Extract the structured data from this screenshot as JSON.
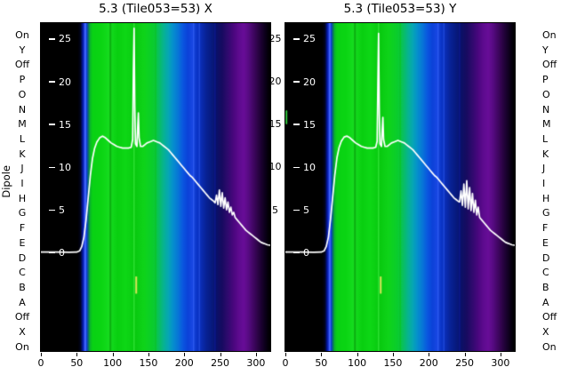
{
  "axis": {
    "dipole_axis_label": "Dipole",
    "dipole_labels": [
      "On",
      "Y",
      "Off",
      "P",
      "O",
      "N",
      "M",
      "L",
      "K",
      "J",
      "I",
      "H",
      "G",
      "F",
      "E",
      "D",
      "C",
      "B",
      "A",
      "Off",
      "X",
      "On"
    ],
    "overlay_ticks_between": [
      25,
      20,
      15,
      10,
      5
    ]
  },
  "chart_data": [
    {
      "type": "heatmap",
      "title": "5.3 (Tile053=53) X",
      "ylabel": "Dipole",
      "xlim": [
        0,
        320
      ],
      "x_ticks": [
        0,
        50,
        100,
        150,
        200,
        250,
        300
      ],
      "overlay": {
        "ylim": [
          -11.5,
          26.8
        ],
        "yticks_inner": [
          25,
          20,
          15,
          10,
          5,
          0
        ],
        "line_color": "#ffffff",
        "line": [
          [
            0,
            0.05
          ],
          [
            20,
            0.05
          ],
          [
            40,
            0.03
          ],
          [
            50,
            0.05
          ],
          [
            54,
            0.2
          ],
          [
            57,
            0.7
          ],
          [
            60,
            1.8
          ],
          [
            63,
            3.8
          ],
          [
            66,
            6.4
          ],
          [
            69,
            9.0
          ],
          [
            72,
            11.0
          ],
          [
            75,
            12.2
          ],
          [
            78,
            12.9
          ],
          [
            82,
            13.4
          ],
          [
            86,
            13.6
          ],
          [
            90,
            13.4
          ],
          [
            94,
            13.1
          ],
          [
            98,
            12.8
          ],
          [
            102,
            12.6
          ],
          [
            106,
            12.4
          ],
          [
            110,
            12.3
          ],
          [
            114,
            12.2
          ],
          [
            118,
            12.2
          ],
          [
            122,
            12.2
          ],
          [
            126,
            12.3
          ],
          [
            128,
            13.2
          ],
          [
            129,
            21.0
          ],
          [
            130,
            26.2
          ],
          [
            131,
            17.0
          ],
          [
            132,
            12.7
          ],
          [
            134,
            12.4
          ],
          [
            135,
            14.6
          ],
          [
            136,
            16.3
          ],
          [
            137,
            13.4
          ],
          [
            139,
            12.4
          ],
          [
            142,
            12.4
          ],
          [
            145,
            12.6
          ],
          [
            148,
            12.8
          ],
          [
            151,
            12.9
          ],
          [
            154,
            13.0
          ],
          [
            157,
            13.1
          ],
          [
            160,
            13.0
          ],
          [
            163,
            12.9
          ],
          [
            166,
            12.8
          ],
          [
            169,
            12.6
          ],
          [
            172,
            12.4
          ],
          [
            175,
            12.2
          ],
          [
            178,
            12.0
          ],
          [
            181,
            11.7
          ],
          [
            184,
            11.4
          ],
          [
            187,
            11.1
          ],
          [
            190,
            10.8
          ],
          [
            193,
            10.5
          ],
          [
            196,
            10.2
          ],
          [
            199,
            9.9
          ],
          [
            202,
            9.6
          ],
          [
            205,
            9.3
          ],
          [
            208,
            9.0
          ],
          [
            211,
            8.8
          ],
          [
            214,
            8.5
          ],
          [
            217,
            8.2
          ],
          [
            220,
            7.9
          ],
          [
            223,
            7.6
          ],
          [
            226,
            7.3
          ],
          [
            229,
            7.0
          ],
          [
            232,
            6.7
          ],
          [
            235,
            6.4
          ],
          [
            238,
            6.2
          ],
          [
            241,
            6.0
          ],
          [
            243,
            5.8
          ],
          [
            245,
            6.7
          ],
          [
            247,
            5.6
          ],
          [
            249,
            7.3
          ],
          [
            251,
            5.4
          ],
          [
            253,
            7.0
          ],
          [
            255,
            5.2
          ],
          [
            257,
            6.4
          ],
          [
            259,
            5.0
          ],
          [
            261,
            5.9
          ],
          [
            263,
            4.7
          ],
          [
            265,
            5.3
          ],
          [
            267,
            4.4
          ],
          [
            269,
            4.7
          ],
          [
            271,
            4.1
          ],
          [
            274,
            3.8
          ],
          [
            277,
            3.5
          ],
          [
            280,
            3.2
          ],
          [
            283,
            2.9
          ],
          [
            286,
            2.6
          ],
          [
            289,
            2.4
          ],
          [
            292,
            2.2
          ],
          [
            295,
            2.0
          ],
          [
            298,
            1.8
          ],
          [
            301,
            1.6
          ],
          [
            304,
            1.4
          ],
          [
            307,
            1.2
          ],
          [
            310,
            1.1
          ],
          [
            313,
            1.0
          ],
          [
            316,
            0.9
          ],
          [
            320,
            0.85
          ]
        ]
      },
      "background_stops": [
        [
          0.0,
          "#000000"
        ],
        [
          0.16,
          "#000000"
        ],
        [
          0.172,
          "#00031a"
        ],
        [
          0.183,
          "#0418a6"
        ],
        [
          0.192,
          "#2a52f5"
        ],
        [
          0.2,
          "#0a3fd0"
        ],
        [
          0.207,
          "#0b6f66"
        ],
        [
          0.215,
          "#0ab62a"
        ],
        [
          0.225,
          "#09d214"
        ],
        [
          0.265,
          "#0bd513"
        ],
        [
          0.3,
          "#16dd20"
        ],
        [
          0.335,
          "#09cf10"
        ],
        [
          0.37,
          "#0ed816"
        ],
        [
          0.41,
          "#08c90f"
        ],
        [
          0.45,
          "#0fd41a"
        ],
        [
          0.49,
          "#0acc2e"
        ],
        [
          0.515,
          "#08bf62"
        ],
        [
          0.535,
          "#07b391"
        ],
        [
          0.555,
          "#06a7b4"
        ],
        [
          0.575,
          "#0590cc"
        ],
        [
          0.6,
          "#0873d8"
        ],
        [
          0.62,
          "#0a55e0"
        ],
        [
          0.64,
          "#0b42d8"
        ],
        [
          0.66,
          "#1847e2"
        ],
        [
          0.68,
          "#0b35c8"
        ],
        [
          0.7,
          "#0a2cb2"
        ],
        [
          0.72,
          "#082295"
        ],
        [
          0.745,
          "#071a7e"
        ],
        [
          0.765,
          "#0a1168"
        ],
        [
          0.79,
          "#170b60"
        ],
        [
          0.815,
          "#300a6e"
        ],
        [
          0.84,
          "#49077e"
        ],
        [
          0.862,
          "#5d0b8e"
        ],
        [
          0.885,
          "#680d98"
        ],
        [
          0.905,
          "#570b82"
        ],
        [
          0.928,
          "#3f0660"
        ],
        [
          0.95,
          "#270340"
        ],
        [
          0.972,
          "#110122"
        ],
        [
          0.99,
          "#04000a"
        ],
        [
          1.0,
          "#000000"
        ]
      ],
      "stripes": [
        {
          "x": 62,
          "w": 1.5,
          "color": "#4d6bff",
          "alpha": 0.9
        },
        {
          "x": 97,
          "w": 2,
          "color": "#0aa40c",
          "alpha": 0.8
        },
        {
          "x": 130,
          "w": 1.2,
          "color": "#3ae93f",
          "alpha": 0.9
        },
        {
          "x": 160,
          "w": 1,
          "color": "#0abf12",
          "alpha": 0.8
        },
        {
          "x": 213,
          "w": 1.5,
          "color": "#2e5bf0",
          "alpha": 0.9
        },
        {
          "x": 221,
          "w": 1,
          "color": "#2e5bf0",
          "alpha": 0.8
        },
        {
          "x": 243,
          "w": 1,
          "color": "#0d1a9e",
          "alpha": 0.9
        }
      ],
      "marks": [
        {
          "x": 133,
          "y1": -2.8,
          "y2": -4.8,
          "color": "#d9e65a",
          "w": 2
        }
      ]
    },
    {
      "type": "heatmap",
      "title": "5.3 (Tile053=53) Y",
      "ylabel": "Dipole",
      "xlim": [
        0,
        320
      ],
      "x_ticks": [
        0,
        50,
        100,
        150,
        200,
        250,
        300
      ],
      "overlay": {
        "ylim": [
          -11.5,
          26.8
        ],
        "yticks_inner": [
          25,
          20,
          15,
          10,
          5,
          0
        ],
        "line_color": "#ffffff",
        "line": [
          [
            0,
            0.05
          ],
          [
            20,
            0.05
          ],
          [
            40,
            0.03
          ],
          [
            50,
            0.05
          ],
          [
            54,
            0.2
          ],
          [
            57,
            0.7
          ],
          [
            60,
            1.8
          ],
          [
            63,
            3.9
          ],
          [
            66,
            6.5
          ],
          [
            69,
            9.1
          ],
          [
            72,
            11.1
          ],
          [
            75,
            12.3
          ],
          [
            78,
            13.0
          ],
          [
            82,
            13.5
          ],
          [
            86,
            13.6
          ],
          [
            90,
            13.4
          ],
          [
            94,
            13.1
          ],
          [
            98,
            12.8
          ],
          [
            102,
            12.6
          ],
          [
            106,
            12.4
          ],
          [
            110,
            12.3
          ],
          [
            114,
            12.2
          ],
          [
            118,
            12.2
          ],
          [
            122,
            12.2
          ],
          [
            126,
            12.3
          ],
          [
            128,
            13.0
          ],
          [
            129,
            19.5
          ],
          [
            130,
            25.6
          ],
          [
            131,
            16.2
          ],
          [
            132,
            12.7
          ],
          [
            134,
            12.4
          ],
          [
            135,
            14.2
          ],
          [
            136,
            15.8
          ],
          [
            137,
            13.2
          ],
          [
            139,
            12.4
          ],
          [
            142,
            12.4
          ],
          [
            145,
            12.6
          ],
          [
            148,
            12.8
          ],
          [
            151,
            12.9
          ],
          [
            154,
            13.0
          ],
          [
            157,
            13.1
          ],
          [
            160,
            13.0
          ],
          [
            163,
            12.9
          ],
          [
            166,
            12.8
          ],
          [
            169,
            12.6
          ],
          [
            172,
            12.4
          ],
          [
            175,
            12.2
          ],
          [
            178,
            12.0
          ],
          [
            181,
            11.7
          ],
          [
            184,
            11.4
          ],
          [
            187,
            11.1
          ],
          [
            190,
            10.8
          ],
          [
            193,
            10.5
          ],
          [
            196,
            10.2
          ],
          [
            199,
            9.9
          ],
          [
            202,
            9.6
          ],
          [
            205,
            9.3
          ],
          [
            208,
            9.0
          ],
          [
            211,
            8.8
          ],
          [
            214,
            8.5
          ],
          [
            217,
            8.2
          ],
          [
            220,
            7.9
          ],
          [
            223,
            7.6
          ],
          [
            226,
            7.3
          ],
          [
            229,
            7.0
          ],
          [
            232,
            6.7
          ],
          [
            235,
            6.4
          ],
          [
            238,
            6.2
          ],
          [
            241,
            6.0
          ],
          [
            243,
            5.9
          ],
          [
            245,
            7.2
          ],
          [
            247,
            5.5
          ],
          [
            249,
            8.0
          ],
          [
            251,
            5.3
          ],
          [
            253,
            8.4
          ],
          [
            255,
            5.1
          ],
          [
            257,
            7.6
          ],
          [
            259,
            4.9
          ],
          [
            261,
            6.9
          ],
          [
            263,
            4.7
          ],
          [
            265,
            6.1
          ],
          [
            267,
            4.4
          ],
          [
            269,
            5.3
          ],
          [
            271,
            4.1
          ],
          [
            274,
            3.8
          ],
          [
            277,
            3.5
          ],
          [
            280,
            3.2
          ],
          [
            283,
            2.9
          ],
          [
            286,
            2.6
          ],
          [
            289,
            2.4
          ],
          [
            292,
            2.2
          ],
          [
            295,
            2.0
          ],
          [
            298,
            1.8
          ],
          [
            301,
            1.6
          ],
          [
            304,
            1.4
          ],
          [
            307,
            1.2
          ],
          [
            310,
            1.1
          ],
          [
            313,
            1.0
          ],
          [
            316,
            0.9
          ],
          [
            320,
            0.85
          ]
        ]
      },
      "background_stops": [
        [
          0.0,
          "#000000"
        ],
        [
          0.16,
          "#000000"
        ],
        [
          0.172,
          "#00031a"
        ],
        [
          0.183,
          "#0418a6"
        ],
        [
          0.192,
          "#2a52f5"
        ],
        [
          0.2,
          "#0a3fd0"
        ],
        [
          0.207,
          "#0b6f66"
        ],
        [
          0.215,
          "#0ab62a"
        ],
        [
          0.225,
          "#09d214"
        ],
        [
          0.265,
          "#0bd513"
        ],
        [
          0.3,
          "#16dd20"
        ],
        [
          0.335,
          "#09cf10"
        ],
        [
          0.37,
          "#0ed816"
        ],
        [
          0.41,
          "#08c90f"
        ],
        [
          0.45,
          "#0fd41a"
        ],
        [
          0.49,
          "#0acc2e"
        ],
        [
          0.515,
          "#08bf62"
        ],
        [
          0.535,
          "#07b391"
        ],
        [
          0.555,
          "#06a7b4"
        ],
        [
          0.575,
          "#0590cc"
        ],
        [
          0.6,
          "#0873d8"
        ],
        [
          0.62,
          "#0a55e0"
        ],
        [
          0.64,
          "#0b42d8"
        ],
        [
          0.66,
          "#1847e2"
        ],
        [
          0.68,
          "#0b35c8"
        ],
        [
          0.7,
          "#0a2cb2"
        ],
        [
          0.72,
          "#082295"
        ],
        [
          0.745,
          "#071a7e"
        ],
        [
          0.765,
          "#0a1168"
        ],
        [
          0.79,
          "#170b60"
        ],
        [
          0.815,
          "#300a6e"
        ],
        [
          0.84,
          "#49077e"
        ],
        [
          0.862,
          "#5d0b8e"
        ],
        [
          0.885,
          "#680d98"
        ],
        [
          0.905,
          "#570b82"
        ],
        [
          0.928,
          "#3f0660"
        ],
        [
          0.95,
          "#270340"
        ],
        [
          0.972,
          "#110122"
        ],
        [
          0.99,
          "#04000a"
        ],
        [
          1.0,
          "#000000"
        ]
      ],
      "stripes": [
        {
          "x": 62,
          "w": 1.5,
          "color": "#4d6bff",
          "alpha": 0.9
        },
        {
          "x": 97,
          "w": 2,
          "color": "#0aa40c",
          "alpha": 0.8
        },
        {
          "x": 130,
          "w": 1.2,
          "color": "#3ae93f",
          "alpha": 0.9
        },
        {
          "x": 160,
          "w": 1,
          "color": "#0abf12",
          "alpha": 0.8
        },
        {
          "x": 213,
          "w": 1.5,
          "color": "#2e5bf0",
          "alpha": 0.9
        },
        {
          "x": 221,
          "w": 1,
          "color": "#2e5bf0",
          "alpha": 0.8
        },
        {
          "x": 243,
          "w": 1,
          "color": "#0d1a9e",
          "alpha": 0.9
        }
      ],
      "marks": [
        {
          "x": 133,
          "y1": -2.8,
          "y2": -4.8,
          "color": "#d9e65a",
          "w": 2
        },
        {
          "x": 1.5,
          "y1": 15.0,
          "y2": 16.6,
          "color": "#2fbf3a",
          "w": 2
        }
      ]
    }
  ]
}
